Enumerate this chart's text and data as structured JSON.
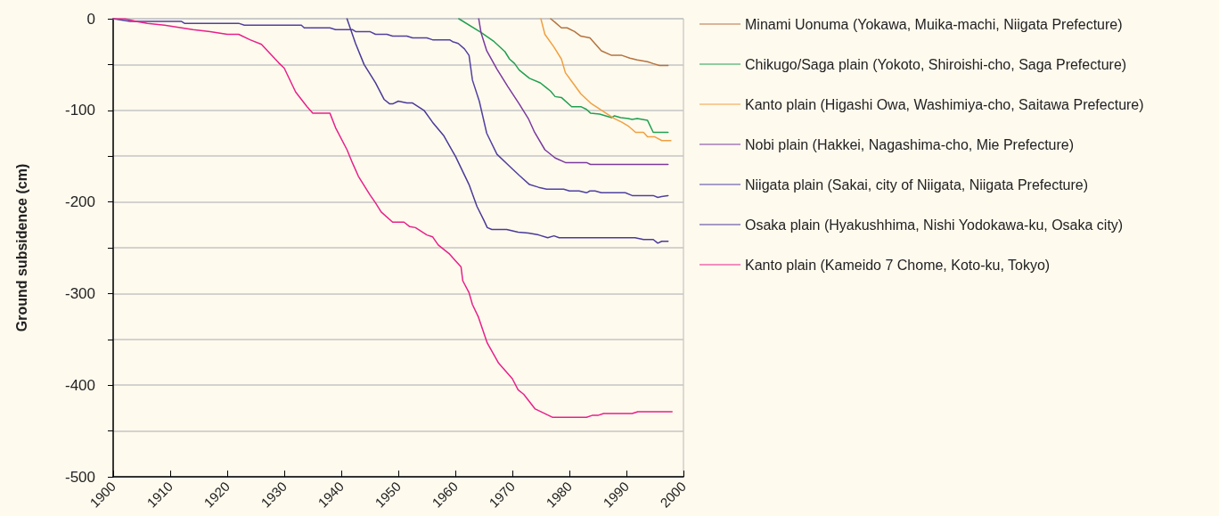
{
  "chart_data": {
    "type": "line",
    "ylabel": "Ground subsidence (cm)",
    "xlim": [
      1900,
      2000
    ],
    "xticks": [
      1900,
      1910,
      1920,
      1930,
      1940,
      1950,
      1960,
      1970,
      1980,
      1990,
      2000
    ],
    "ylim": [
      -500,
      0
    ],
    "yticks": [
      0,
      {
        "value": -50,
        "label": null
      },
      -100,
      {
        "value": -150,
        "label": null
      },
      -200,
      {
        "value": -250,
        "label": null
      },
      -300,
      {
        "value": -350,
        "label": null
      },
      -400,
      {
        "value": -450,
        "label": null
      },
      -500
    ],
    "grid": "y",
    "legend": "right",
    "marker": "none",
    "line_style": "solid",
    "series": [
      {
        "name": "Minami Uonuma (Yokawa, Muika-machi, Niigata Prefecture)",
        "color": "#b5733f",
        "x": [
          1976.7,
          1977.5,
          1978.6,
          1979.6,
          1980.9,
          1982,
          1983.6,
          1985.6,
          1987.4,
          1989.2,
          1990.6,
          1991.9,
          1993.7,
          1994.7,
          1995.8,
          1997.3
        ],
        "values": [
          0,
          -4,
          -10,
          -10,
          -14,
          -19,
          -21,
          -35,
          -40,
          -40,
          -43,
          -45,
          -47,
          -49,
          -51,
          -51
        ]
      },
      {
        "name": "Chikugo/Saga plain (Yokoto, Shiroishi-cho, Saga Prefecture)",
        "color": "#20a050",
        "x": [
          1960.6,
          1964.5,
          1966.8,
          1968.7,
          1969.5,
          1970.4,
          1971.2,
          1973,
          1974.9,
          1975.9,
          1976.7,
          1977.5,
          1978.6,
          1980.4,
          1982,
          1983,
          1983.7,
          1985.3,
          1987.4,
          1987.9,
          1989,
          1990.3,
          1991,
          1991.9,
          1993.7,
          1994.7,
          1997.3
        ],
        "values": [
          0,
          -15,
          -25,
          -36,
          -44,
          -49,
          -56,
          -65,
          -70,
          -75,
          -79,
          -85,
          -86,
          -96,
          -96,
          -99,
          -103,
          -104,
          -108,
          -106,
          -108,
          -109,
          -110,
          -109,
          -111,
          -124,
          -124
        ]
      },
      {
        "name": "Kanto plain (Higashi Owa, Washimiya-cho, Saitawa Prefecture)",
        "color": "#f0a040",
        "x": [
          1975,
          1975.7,
          1977.3,
          1978.6,
          1979.3,
          1980.6,
          1982,
          1983.7,
          1985.9,
          1987.9,
          1989.2,
          1990.3,
          1991.6,
          1993,
          1993.7,
          1995,
          1996.2,
          1997.8
        ],
        "values": [
          0,
          -17,
          -31,
          -44,
          -59,
          -70,
          -82,
          -92,
          -101,
          -109,
          -113,
          -117,
          -124,
          -124,
          -129,
          -129,
          -133,
          -133
        ]
      },
      {
        "name": "Nobi plain (Hakkei, Nagashima-cho, Mie Prefecture)",
        "color": "#7b3a9e",
        "x": [
          1964.1,
          1964.5,
          1965.5,
          1967.3,
          1969.2,
          1971.2,
          1972.8,
          1973.9,
          1975.7,
          1977.5,
          1979.3,
          1983,
          1983.7,
          1997.3
        ],
        "values": [
          0,
          -15,
          -35,
          -55,
          -74,
          -93,
          -109,
          -124,
          -143,
          -152,
          -157,
          -157,
          -159,
          -159
        ]
      },
      {
        "name": "Niigata plain (Sakai, city of Niigata, Niigata Prefecture)",
        "color": "#5140a0",
        "x": [
          1900,
          1903,
          1912,
          1912.5,
          1922,
          1923,
          1933,
          1933.5,
          1938,
          1939,
          1942,
          1942.5,
          1945,
          1946,
          1948,
          1949,
          1951.5,
          1952.5,
          1955,
          1956,
          1959,
          1959.5,
          1960.5,
          1961.6,
          1962.4,
          1963,
          1964.2,
          1965.5,
          1967.3,
          1969.5,
          1971.2,
          1973,
          1974.6,
          1976,
          1979,
          1980,
          1981.7,
          1983,
          1983.6,
          1984.5,
          1985.6,
          1989.8,
          1991,
          1994.7,
          1995.5,
          1996.2,
          1997.3
        ],
        "values": [
          0,
          -3,
          -3,
          -5,
          -5,
          -7,
          -7,
          -10,
          -10,
          -12,
          -12,
          -14,
          -14,
          -17,
          -17,
          -19,
          -19,
          -21,
          -21,
          -23,
          -23,
          -25,
          -27,
          -33,
          -40,
          -67,
          -90,
          -125,
          -148,
          -161,
          -171,
          -181,
          -184,
          -186,
          -186,
          -188,
          -188,
          -190,
          -188,
          -188,
          -190,
          -190,
          -193,
          -193,
          -195,
          -194,
          -193
        ]
      },
      {
        "name": "Osaka plain (Hyakushhima, Nishi Yodokawa-ku, Osaka city)",
        "color": "#4a3a98",
        "x": [
          1941,
          1942.5,
          1944,
          1946,
          1947.5,
          1948.5,
          1949,
          1950,
          1951.5,
          1952.5,
          1954.5,
          1956,
          1958,
          1960,
          1962.4,
          1963.8,
          1965,
          1965.6,
          1966.4,
          1967.3,
          1969,
          1971,
          1972.8,
          1974.6,
          1976.2,
          1977.3,
          1978.2,
          1991.5,
          1993,
          1994.7,
          1995.5,
          1996.2,
          1997.3
        ],
        "values": [
          0,
          -27,
          -50,
          -70,
          -88,
          -93,
          -93,
          -90,
          -92,
          -92,
          -100,
          -113,
          -128,
          -150,
          -181,
          -205,
          -220,
          -228,
          -230,
          -230,
          -230,
          -233,
          -234,
          -236,
          -239,
          -237,
          -239,
          -239,
          -241,
          -241,
          -245,
          -243,
          -243
        ]
      },
      {
        "name": "Kanto plain (Kameido 7 Chome, Koto-ku, Tokyo)",
        "color": "#e8208a",
        "x": [
          1900,
          1902,
          1904,
          1906,
          1909,
          1912,
          1914,
          1917,
          1920,
          1922,
          1924,
          1926,
          1929,
          1930,
          1932,
          1934,
          1935,
          1938,
          1939,
          1941,
          1942,
          1943,
          1945,
          1946,
          1947,
          1949,
          1951,
          1952,
          1953,
          1955,
          1956,
          1957,
          1959,
          1961,
          1961.3,
          1962.4,
          1963,
          1964,
          1965.6,
          1967.6,
          1970,
          1971,
          1972,
          1974,
          1977,
          1983,
          1984,
          1985,
          1986,
          1991,
          1992,
          1998
        ],
        "values": [
          0,
          0,
          -3,
          -5,
          -7,
          -10,
          -12,
          -14,
          -17,
          -17,
          -23,
          -28,
          -48,
          -54,
          -80,
          -96,
          -103,
          -103,
          -119,
          -143,
          -158,
          -172,
          -192,
          -201,
          -211,
          -222,
          -222,
          -227,
          -228,
          -236,
          -238,
          -247,
          -257,
          -271,
          -286,
          -299,
          -312,
          -325,
          -354,
          -376,
          -393,
          -405,
          -410,
          -426,
          -435,
          -435,
          -433,
          -433,
          -431,
          -431,
          -429,
          -429
        ]
      }
    ]
  }
}
